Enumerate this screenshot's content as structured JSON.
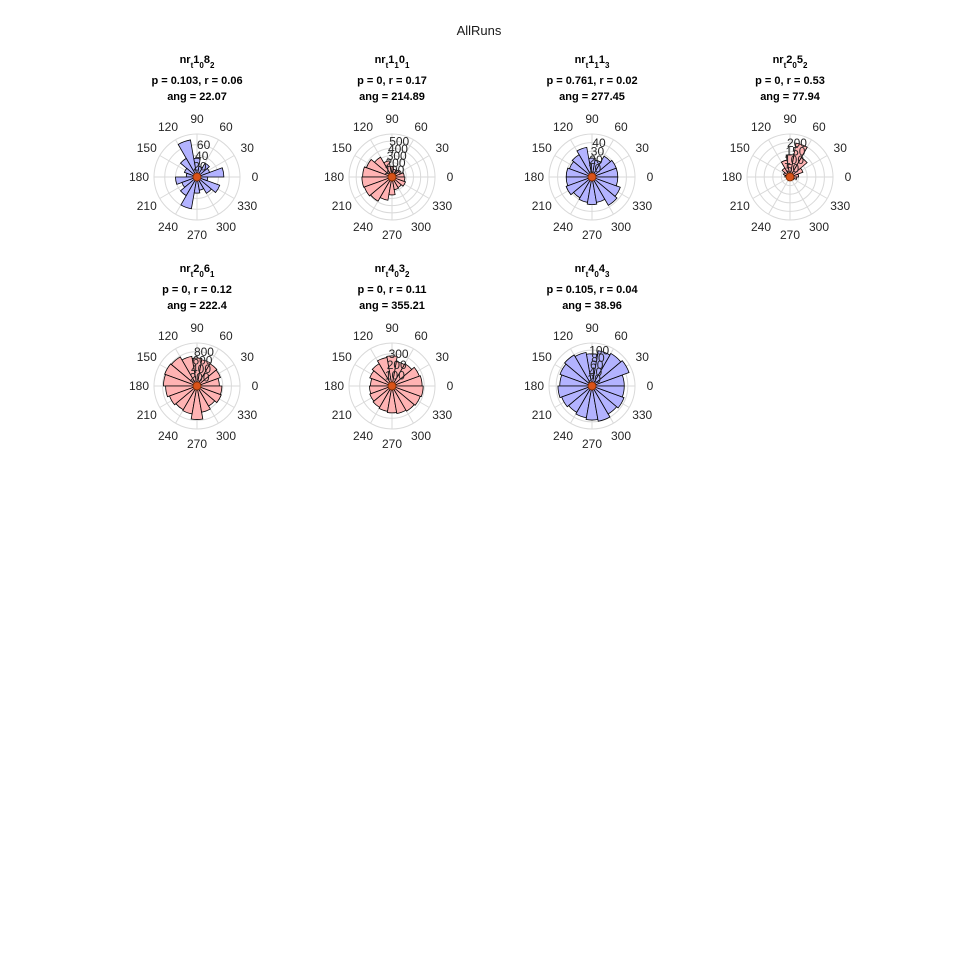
{
  "figure_title": "AllRuns",
  "colors": {
    "significant": "#ffb3b3",
    "nonsignificant": "#b3b3ff",
    "edge": "#000000",
    "grid": "#d9d9d9",
    "center_marker": "#d95319"
  },
  "chart_data": [
    {
      "type": "polar-histogram",
      "title": {
        "name": "nr",
        "sub_t": "t",
        "a": "1",
        "sub_a": "0",
        "b": "8",
        "sub_b": "2"
      },
      "stats_line": "p = 0.103, r = 0.06",
      "ang_line": "ang = 22.07",
      "significant": false,
      "theta_tick_labels": [
        "0",
        "30",
        "60",
        "90",
        "120",
        "150",
        "180",
        "210",
        "240",
        "270",
        "300",
        "330"
      ],
      "r_tick_values": [
        20,
        40,
        60
      ],
      "r_tick_labels": [
        "20",
        "40",
        "60"
      ],
      "rlim": [
        0,
        80
      ],
      "bin_width_deg": 20,
      "counts": [
        50,
        25,
        30,
        20,
        35,
        70,
        40,
        25,
        20,
        40,
        30,
        40,
        60,
        30,
        25,
        35,
        45,
        20
      ]
    },
    {
      "type": "polar-histogram",
      "title": {
        "name": "nr",
        "sub_t": "t",
        "a": "1",
        "sub_a": "1",
        "b": "0",
        "sub_b": "1"
      },
      "stats_line": "p = 0, r = 0.17",
      "ang_line": "ang = 214.89",
      "significant": true,
      "theta_tick_labels": [
        "0",
        "30",
        "60",
        "90",
        "120",
        "150",
        "180",
        "210",
        "240",
        "270",
        "300",
        "330"
      ],
      "r_tick_values": [
        100,
        200,
        300,
        400,
        500
      ],
      "r_tick_labels": [
        "100",
        "200",
        "300",
        "400",
        "500"
      ],
      "rlim": [
        0,
        600
      ],
      "bin_width_deg": 20,
      "counts": [
        170,
        140,
        120,
        110,
        150,
        230,
        320,
        380,
        410,
        420,
        410,
        390,
        330,
        250,
        180,
        170,
        200,
        180
      ]
    },
    {
      "type": "polar-histogram",
      "title": {
        "name": "nr",
        "sub_t": "t",
        "a": "1",
        "sub_a": "1",
        "b": "1",
        "sub_b": "3"
      },
      "stats_line": "p = 0.761, r = 0.02",
      "ang_line": "ang = 277.45",
      "significant": false,
      "theta_tick_labels": [
        "0",
        "30",
        "60",
        "90",
        "120",
        "150",
        "180",
        "210",
        "240",
        "270",
        "300",
        "330"
      ],
      "r_tick_values": [
        10,
        20,
        30,
        40
      ],
      "r_tick_labels": [
        "10",
        "20",
        "30",
        "40"
      ],
      "rlim": [
        0,
        50
      ],
      "bin_width_deg": 20,
      "counts": [
        30,
        30,
        28,
        20,
        22,
        35,
        30,
        28,
        30,
        30,
        32,
        28,
        30,
        32,
        30,
        38,
        35,
        30
      ]
    },
    {
      "type": "polar-histogram",
      "title": {
        "name": "nr",
        "sub_t": "t",
        "a": "2",
        "sub_a": "0",
        "b": "5",
        "sub_b": "2"
      },
      "stats_line": "p = 0, r = 0.53",
      "ang_line": "ang = 77.94",
      "significant": true,
      "theta_tick_labels": [
        "0",
        "30",
        "60",
        "90",
        "120",
        "150",
        "180",
        "210",
        "240",
        "270",
        "300",
        "330"
      ],
      "r_tick_values": [
        50,
        100,
        150,
        200
      ],
      "r_tick_labels": [
        "50",
        "100",
        "150",
        "200"
      ],
      "rlim": [
        0,
        250
      ],
      "bin_width_deg": 20,
      "counts": [
        50,
        80,
        130,
        200,
        130,
        100,
        60,
        40,
        30,
        20,
        15,
        10,
        10,
        10,
        15,
        20,
        25,
        40
      ]
    },
    {
      "type": "polar-histogram",
      "title": {
        "name": "nr",
        "sub_t": "t",
        "a": "2",
        "sub_a": "0",
        "b": "6",
        "sub_b": "1"
      },
      "stats_line": "p = 0, r = 0.12",
      "ang_line": "ang = 222.4",
      "significant": true,
      "theta_tick_labels": [
        "0",
        "30",
        "60",
        "90",
        "120",
        "150",
        "180",
        "210",
        "240",
        "270",
        "300",
        "330"
      ],
      "r_tick_values": [
        200,
        400,
        600,
        800
      ],
      "r_tick_labels": [
        "200",
        "400",
        "600",
        "800"
      ],
      "rlim": [
        0,
        1000
      ],
      "bin_width_deg": 20,
      "counts": [
        520,
        580,
        600,
        620,
        650,
        700,
        780,
        800,
        780,
        730,
        680,
        640,
        660,
        780,
        620,
        540,
        600,
        580
      ]
    },
    {
      "type": "polar-histogram",
      "title": {
        "name": "nr",
        "sub_t": "t",
        "a": "4",
        "sub_a": "0",
        "b": "3",
        "sub_b": "2"
      },
      "stats_line": "p = 0, r = 0.11",
      "ang_line": "ang = 355.21",
      "significant": true,
      "theta_tick_labels": [
        "0",
        "30",
        "60",
        "90",
        "120",
        "150",
        "180",
        "210",
        "240",
        "270",
        "300",
        "330"
      ],
      "r_tick_values": [
        100,
        200,
        300
      ],
      "r_tick_labels": [
        "100",
        "200",
        "300"
      ],
      "rlim": [
        0,
        400
      ],
      "bin_width_deg": 20,
      "counts": [
        280,
        270,
        240,
        230,
        280,
        270,
        240,
        220,
        200,
        210,
        220,
        230,
        240,
        250,
        260,
        270,
        280,
        290
      ]
    },
    {
      "type": "polar-histogram",
      "title": {
        "name": "nr",
        "sub_t": "t",
        "a": "4",
        "sub_a": "0",
        "b": "4",
        "sub_b": "3"
      },
      "stats_line": "p = 0.105, r = 0.04",
      "ang_line": "ang = 38.96",
      "significant": false,
      "theta_tick_labels": [
        "0",
        "30",
        "60",
        "90",
        "120",
        "150",
        "180",
        "210",
        "240",
        "270",
        "300",
        "330"
      ],
      "r_tick_values": [
        20,
        40,
        60,
        80,
        100
      ],
      "r_tick_labels": [
        "20",
        "40",
        "60",
        "80",
        "100"
      ],
      "rlim": [
        0,
        120
      ],
      "bin_width_deg": 20,
      "counts": [
        90,
        110,
        105,
        100,
        90,
        95,
        100,
        95,
        90,
        95,
        90,
        85,
        90,
        95,
        100,
        90,
        95,
        90
      ]
    }
  ]
}
